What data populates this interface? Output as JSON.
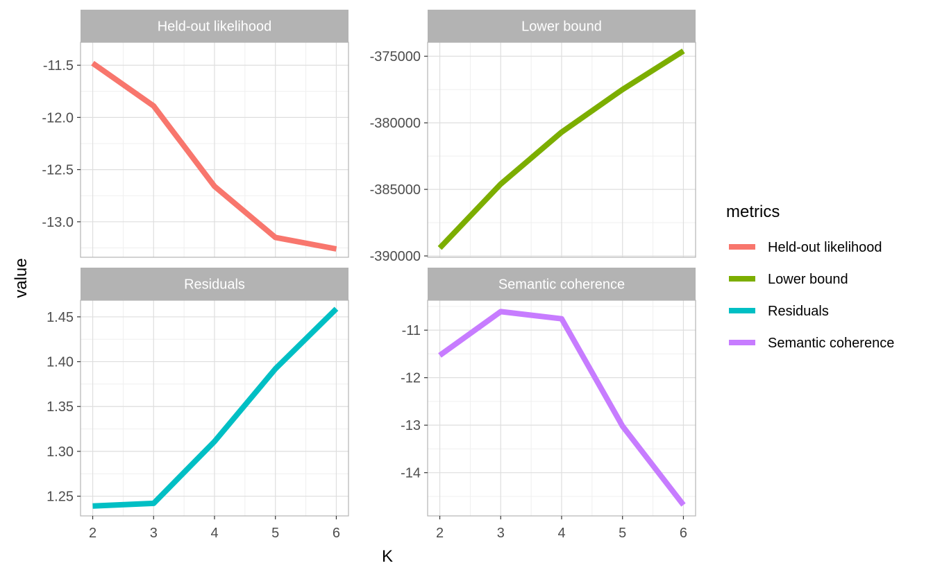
{
  "chart_data": {
    "type": "line",
    "layout": "facet-grid-2x2",
    "xlabel": "K",
    "ylabel": "value",
    "x": [
      2,
      3,
      4,
      5,
      6
    ],
    "xlim": [
      1.8,
      6.2
    ],
    "legend": {
      "title": "metrics",
      "placement": "right"
    },
    "grid": true,
    "panels": [
      {
        "name": "Held-out likelihood",
        "color": "#F8766D",
        "values": [
          -11.48,
          -11.89,
          -12.66,
          -13.15,
          -13.26
        ],
        "ylim": [
          -13.34,
          -11.28
        ],
        "yticks": [
          -13.0,
          -12.5,
          -12.0,
          -11.5
        ],
        "ytick_labels": [
          "-13.0",
          "-12.5",
          "-12.0",
          "-11.5"
        ]
      },
      {
        "name": "Lower bound",
        "color": "#7CAE00",
        "values": [
          -389400,
          -384600,
          -380700,
          -377500,
          -374600
        ],
        "ylim": [
          -390100,
          -373950
        ],
        "yticks": [
          -390000,
          -385000,
          -380000,
          -375000
        ],
        "ytick_labels": [
          "-390000",
          "-385000",
          "-380000",
          "-375000"
        ]
      },
      {
        "name": "Residuals",
        "color": "#00BFC4",
        "values": [
          1.239,
          1.242,
          1.311,
          1.392,
          1.459
        ],
        "ylim": [
          1.228,
          1.4685
        ],
        "yticks": [
          1.25,
          1.3,
          1.35,
          1.4,
          1.45
        ],
        "ytick_labels": [
          "1.25",
          "1.30",
          "1.35",
          "1.40",
          "1.45"
        ]
      },
      {
        "name": "Semantic coherence",
        "color": "#C77CFF",
        "values": [
          -11.53,
          -10.61,
          -10.76,
          -13.02,
          -14.68
        ],
        "ylim": [
          -14.91,
          -10.37
        ],
        "yticks": [
          -14,
          -13,
          -12,
          -11
        ],
        "ytick_labels": [
          "-14",
          "-13",
          "-12",
          "-11"
        ]
      }
    ]
  }
}
